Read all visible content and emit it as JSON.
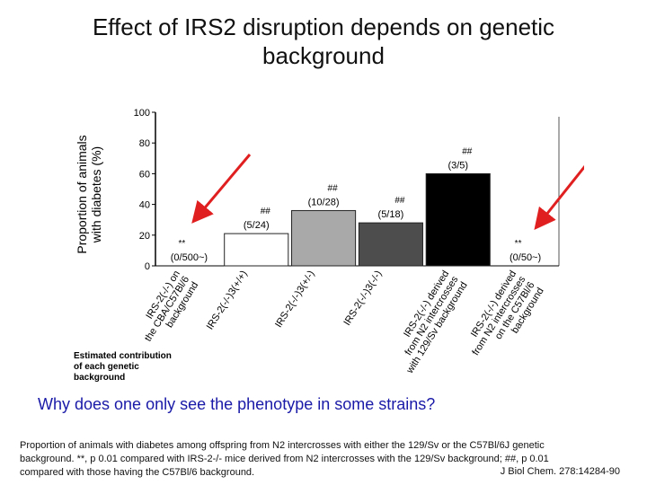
{
  "slide": {
    "title_line1": "Effect of IRS2 disruption depends on genetic",
    "title_line2": "background",
    "question": "Why does one only see the phenotype in some strains?",
    "caption_line1": "Proportion of animals with diabetes among offspring from N2 intercrosses with either the 129/Sv or the C57Bl/6J genetic",
    "caption_line2": "background. **, p  0.01 compared with IRS-2-/- mice derived from N2 intercrosses with the 129/Sv background; ##, p  0.01",
    "caption_line3": "compared with those having the C57Bl/6 background.",
    "citation": "J Biol Chem. 278:14284-90"
  },
  "chart_data": {
    "type": "bar",
    "ylabel_line1": "Proportion of animals",
    "ylabel_line2": "with diabetes (%)",
    "ylim": [
      0,
      100
    ],
    "yticks": [
      "0",
      "20",
      "40",
      "60",
      "80",
      "100"
    ],
    "categories": [
      [
        "IRS-2(-/-) on",
        "the CBA/C57Bl/6",
        "background"
      ],
      [
        "IRS-2(-/-)3(+/+)"
      ],
      [
        "IRS-2(-/-)3(+/-)"
      ],
      [
        "IRS-2(-/-)3(-/-)"
      ],
      [
        "IRS-2(-/-) derived",
        "from N2 intercrosses",
        "with 129/Sv background"
      ],
      [
        "IRS-2(-/-) derived",
        "from N2 intercrosses",
        "on the C57Bl/6",
        "background"
      ]
    ],
    "values": [
      0,
      21,
      36,
      28,
      60,
      0
    ],
    "bar_colors": [
      "#ffffff",
      "#ffffff",
      "#a9a9a9",
      "#4d4d4d",
      "#000000",
      "#ffffff"
    ],
    "counts": [
      "(0/500~)",
      "(5/24)",
      "(10/28)",
      "(5/18)",
      "(3/5)",
      "(0/50~)"
    ],
    "significance": [
      "**",
      "##",
      "##",
      "##",
      "##",
      "**"
    ],
    "contribution_label": [
      "Estimated contribution",
      "of each genetic",
      "background"
    ],
    "arrow_color": "#e02020"
  }
}
